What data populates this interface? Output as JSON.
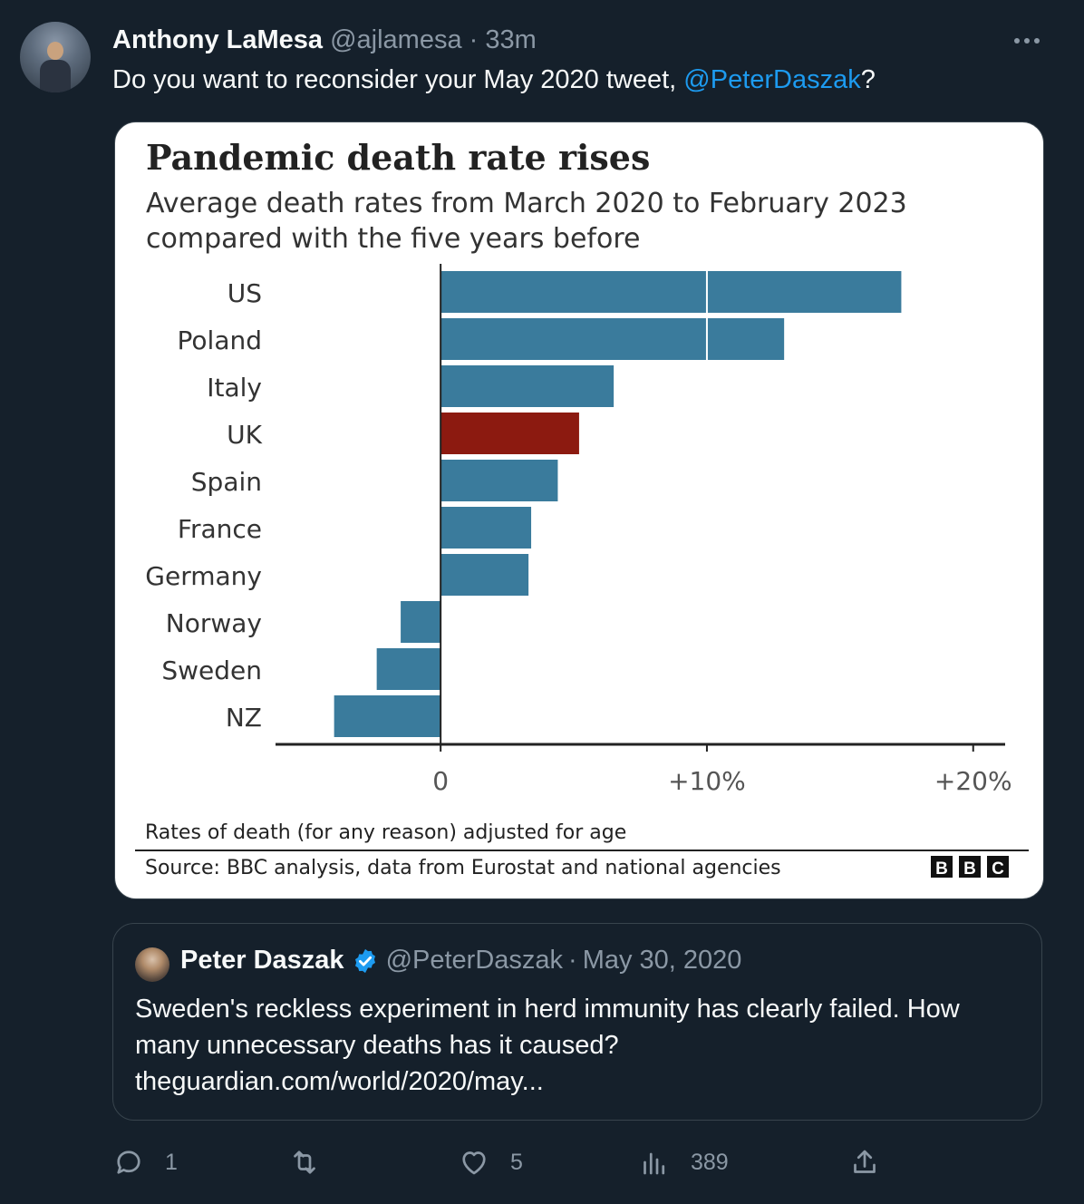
{
  "tweet": {
    "author_name": "Anthony LaMesa",
    "author_handle": "@ajlamesa",
    "separator": "·",
    "time": "33m",
    "text_before": "Do you want to reconsider your May 2020 tweet, ",
    "mention": "@PeterDaszak",
    "text_after": "?",
    "more_icon": "more-dots-icon"
  },
  "chart_data": {
    "type": "bar",
    "orientation": "horizontal",
    "title": "Pandemic death rate rises",
    "subtitle_lines": [
      "Average death rates from March 2020 to February 2023",
      "compared with the five years before"
    ],
    "categories": [
      "US",
      "Poland",
      "Italy",
      "UK",
      "Spain",
      "France",
      "Germany",
      "Norway",
      "Sweden",
      "NZ"
    ],
    "values": [
      17.3,
      12.9,
      6.5,
      5.2,
      4.4,
      3.4,
      3.3,
      -1.5,
      -2.4,
      -4.0
    ],
    "x_ticks": [
      {
        "value": 0,
        "label": "0"
      },
      {
        "value": 10,
        "label": "+10%"
      },
      {
        "value": 20,
        "label": "+20%"
      }
    ],
    "xlim": [
      -6.2,
      21.2
    ],
    "colors": {
      "default": "#3a7b9c",
      "highlight": "#8c1a10",
      "highlight_category": "UK"
    },
    "grid": false,
    "note": "Rates of death (for any reason) adjusted for age",
    "source": "Source: BBC analysis, data from Eurostat and national agencies",
    "logo_letters": [
      "B",
      "B",
      "C"
    ]
  },
  "quote": {
    "author_name": "Peter Daszak",
    "author_handle": "@PeterDaszak",
    "separator": "·",
    "date": "May 30, 2020",
    "verified_color": "#1d9bf0",
    "lines": [
      "Sweden's reckless experiment in herd immunity has clearly failed. How",
      "many unnecessary deaths has it caused?",
      "theguardian.com/world/2020/may..."
    ]
  },
  "actions": {
    "reply_count": "1",
    "retweet_count": "",
    "like_count": "5",
    "views_count": "389"
  }
}
